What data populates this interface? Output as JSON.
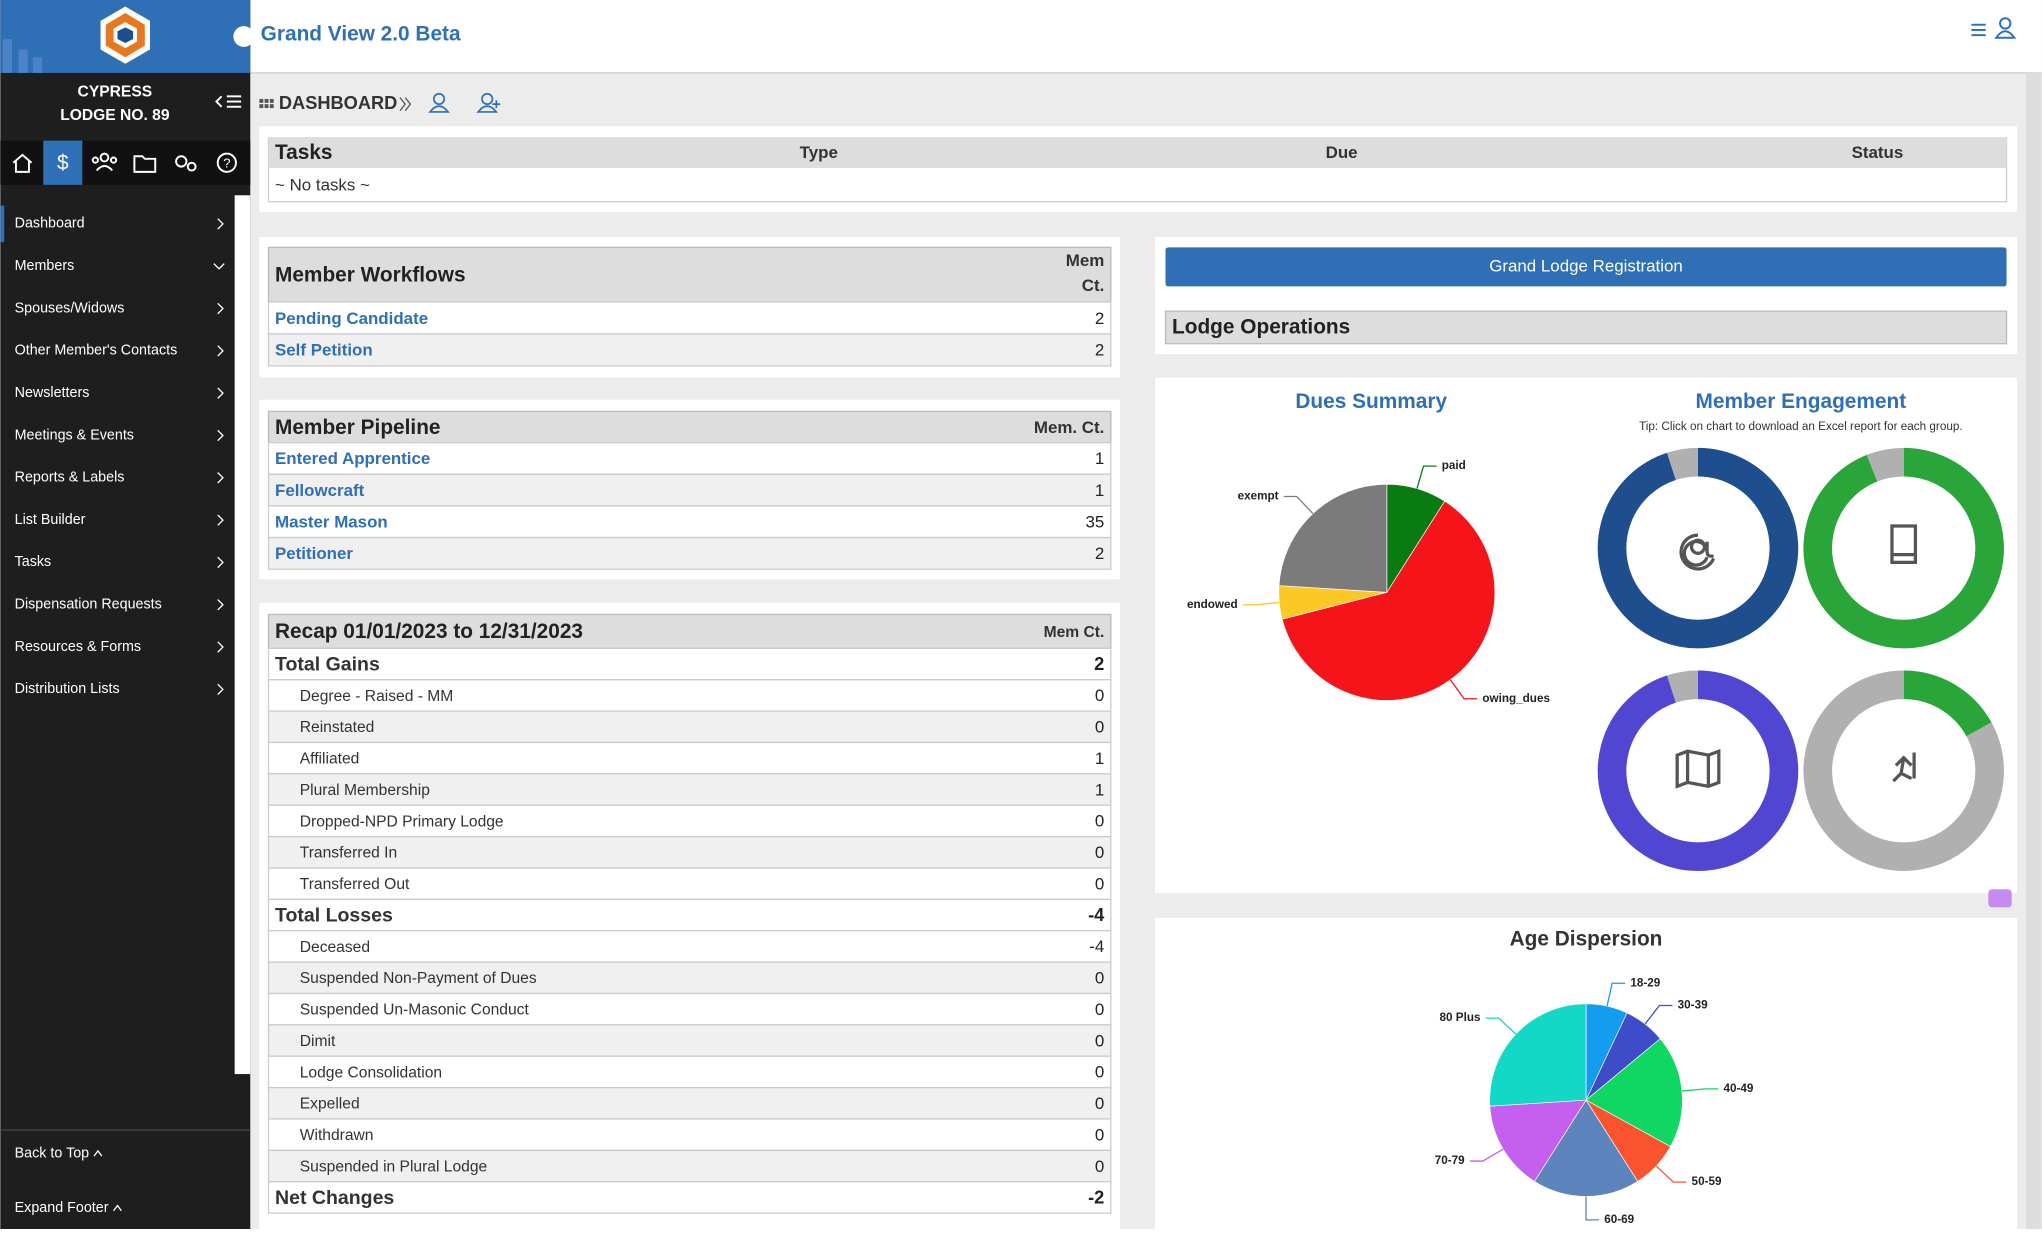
{
  "app": {
    "title": "Grand View 2.0 Beta"
  },
  "sidebar": {
    "lodge_line1": "CYPRESS",
    "lodge_line2": "LODGE NO. 89",
    "menu": [
      "Dashboard",
      "Members",
      "Spouses/Widows",
      "Other Member's Contacts",
      "Newsletters",
      "Meetings & Events",
      "Reports & Labels",
      "List Builder",
      "Tasks",
      "Dispensation Requests",
      "Resources & Forms",
      "Distribution Lists"
    ],
    "back_to_top": "Back to Top",
    "expand_footer": "Expand Footer"
  },
  "breadcrumb": "DASHBOARD",
  "tasks": {
    "title": "Tasks",
    "columns": [
      "Type",
      "Due",
      "Status"
    ],
    "empty": "~ No tasks ~"
  },
  "workflows": {
    "title": "Member Workflows",
    "count_header_1": "Mem",
    "count_header_2": "Ct.",
    "rows": [
      {
        "label": "Pending Candidate",
        "value": 2
      },
      {
        "label": "Self Petition",
        "value": 2
      }
    ]
  },
  "pipeline": {
    "title": "Member Pipeline",
    "count_header": "Mem. Ct.",
    "rows": [
      {
        "label": "Entered Apprentice",
        "value": 1
      },
      {
        "label": "Fellowcraft",
        "value": 1
      },
      {
        "label": "Master Mason",
        "value": 35
      },
      {
        "label": "Petitioner",
        "value": 2
      }
    ]
  },
  "recap": {
    "title": "Recap 01/01/2023 to 12/31/2023",
    "count_header": "Mem Ct.",
    "rows": [
      {
        "label": "Total Gains",
        "value": 2,
        "total": true
      },
      {
        "label": "Degree - Raised - MM",
        "value": 0,
        "total": false
      },
      {
        "label": "Reinstated",
        "value": 0,
        "total": false
      },
      {
        "label": "Affiliated",
        "value": 1,
        "total": false
      },
      {
        "label": "Plural Membership",
        "value": 1,
        "total": false
      },
      {
        "label": "Dropped-NPD Primary Lodge",
        "value": 0,
        "total": false
      },
      {
        "label": "Transferred In",
        "value": 0,
        "total": false
      },
      {
        "label": "Transferred Out",
        "value": 0,
        "total": false
      },
      {
        "label": "Total Losses",
        "value": -4,
        "total": true
      },
      {
        "label": "Deceased",
        "value": -4,
        "total": false
      },
      {
        "label": "Suspended Non-Payment of Dues",
        "value": 0,
        "total": false
      },
      {
        "label": "Suspended Un-Masonic Conduct",
        "value": 0,
        "total": false
      },
      {
        "label": "Dimit",
        "value": 0,
        "total": false
      },
      {
        "label": "Lodge Consolidation",
        "value": 0,
        "total": false
      },
      {
        "label": "Expelled",
        "value": 0,
        "total": false
      },
      {
        "label": "Withdrawn",
        "value": 0,
        "total": false
      },
      {
        "label": "Suspended in Plural Lodge",
        "value": 0,
        "total": false
      },
      {
        "label": "Net Changes",
        "value": -2,
        "total": true
      }
    ]
  },
  "registration_button": "Grand Lodge Registration",
  "lodge_operations": "Lodge Operations",
  "dues_summary": {
    "type": "pie",
    "title": "Dues Summary",
    "categories": [
      "paid",
      "owing_dues",
      "endowed",
      "exempt"
    ],
    "values": [
      9,
      62,
      5,
      24
    ],
    "colors": [
      "#0a7a12",
      "#f5141a",
      "#fcc826",
      "#7b7b7b"
    ]
  },
  "member_engagement": {
    "title": "Member Engagement",
    "tip": "Tip: Click on chart to download an Excel report for each group.",
    "rings": [
      {
        "values": [
          95,
          5
        ],
        "colors": [
          "#1f4e8f",
          "#b0b0b0"
        ]
      },
      {
        "values": [
          94,
          6
        ],
        "colors": [
          "#2aa53a",
          "#b0b0b0"
        ]
      },
      {
        "values": [
          95,
          5
        ],
        "colors": [
          "#5046d1",
          "#b0b0b0"
        ]
      },
      {
        "values": [
          17,
          83
        ],
        "colors": [
          "#2aa53a",
          "#b0b0b0"
        ]
      }
    ]
  },
  "age_dispersion": {
    "type": "pie",
    "title": "Age Dispersion",
    "categories": [
      "18-29",
      "30-39",
      "40-49",
      "50-59",
      "60-69",
      "70-79",
      "80 Plus"
    ],
    "values": [
      7,
      7,
      19,
      8,
      18,
      15,
      26
    ],
    "colors": [
      "#149cf0",
      "#3e4cc8",
      "#0fd762",
      "#f9542f",
      "#5d84bd",
      "#c45ff0",
      "#12d8c5"
    ]
  }
}
